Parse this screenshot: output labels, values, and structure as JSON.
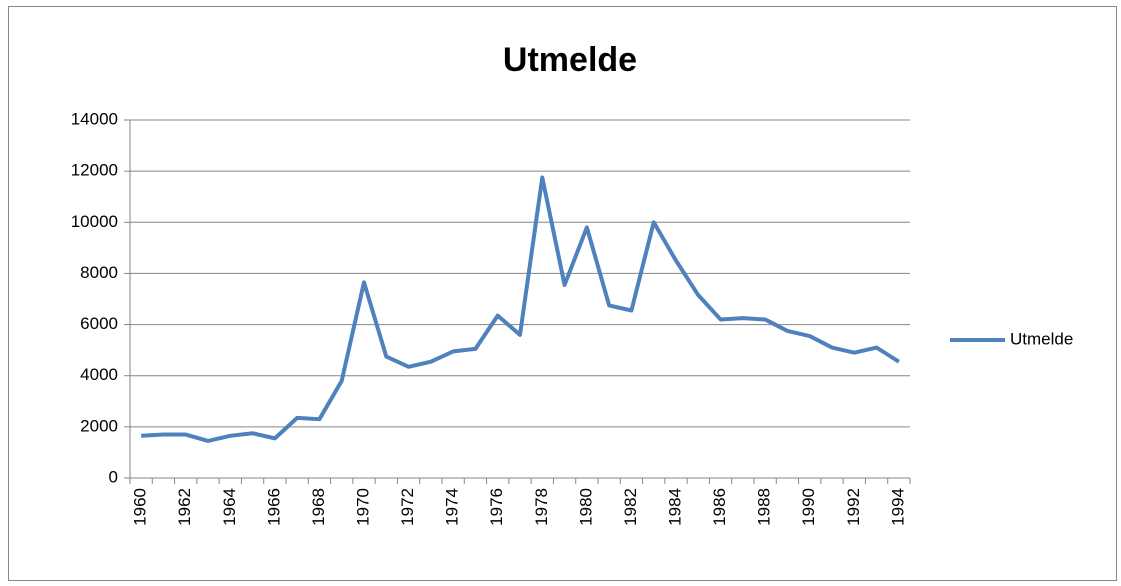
{
  "chart_data": {
    "type": "line",
    "title": "Utmelde",
    "categories": [
      "1960",
      null,
      "1962",
      null,
      "1964",
      null,
      "1966",
      null,
      "1968",
      null,
      "1970",
      null,
      "1972",
      null,
      "1974",
      null,
      "1976",
      null,
      "1978",
      null,
      "1980",
      null,
      "1982",
      null,
      "1984",
      null,
      "1986",
      null,
      "1988",
      null,
      "1990",
      null,
      "1992",
      null,
      "1994"
    ],
    "series": [
      {
        "name": "Utmelde",
        "color": "#4f81bd",
        "values": [
          1650,
          1700,
          1700,
          1450,
          1650,
          1750,
          1550,
          2350,
          2300,
          3800,
          7650,
          4750,
          4350,
          4550,
          4950,
          5050,
          6350,
          5600,
          11750,
          7550,
          9800,
          6750,
          6550,
          10000,
          8500,
          7150,
          6200,
          6250,
          6200,
          5750,
          5550,
          5100,
          4900,
          5100,
          4550
        ]
      }
    ],
    "ylim": [
      0,
      14000
    ],
    "yticks": [
      0,
      2000,
      4000,
      6000,
      8000,
      10000,
      12000,
      14000
    ],
    "grid": true,
    "legend": "right"
  }
}
